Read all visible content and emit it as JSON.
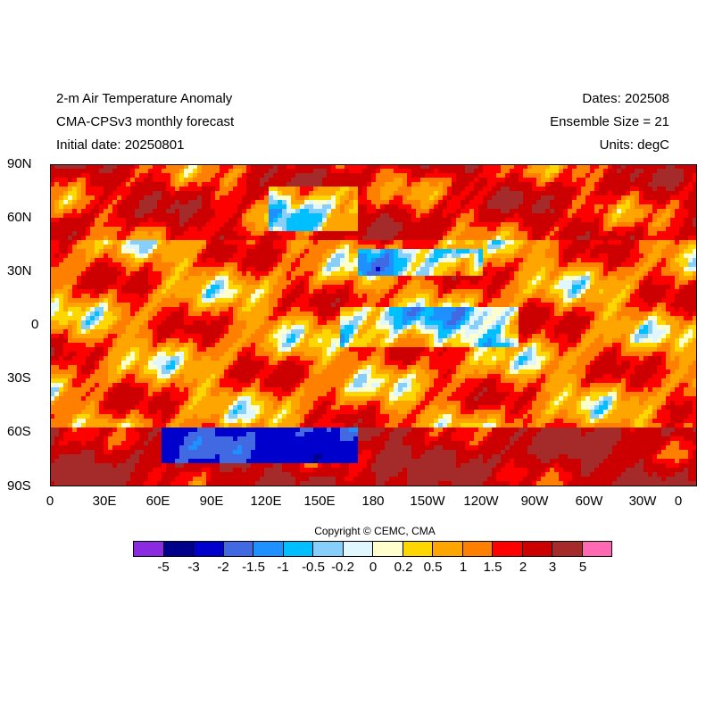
{
  "header": {
    "left": [
      "2-m Air Temperature Anomaly",
      "CMA-CPSv3 monthly forecast",
      "Initial date: 20250801"
    ],
    "right": [
      "Dates: 202508",
      "Ensemble Size = 21",
      "Units: degC"
    ]
  },
  "map": {
    "lat_labels": [
      "90N",
      "60N",
      "30N",
      "0",
      "30S",
      "60S",
      "90S"
    ],
    "lon_labels": [
      "0",
      "30E",
      "60E",
      "90E",
      "120E",
      "150E",
      "180",
      "150W",
      "120W",
      "90W",
      "60W",
      "30W",
      "0"
    ]
  },
  "copyright": "Copyright © CEMC, CMA",
  "colorbar": {
    "colors": [
      "#8a2be2",
      "#00008b",
      "#0000cd",
      "#4169e1",
      "#1e90ff",
      "#00bfff",
      "#87cefa",
      "#e0f7ff",
      "#ffffcc",
      "#ffd700",
      "#ffa500",
      "#ff7f00",
      "#ff0000",
      "#cc0000",
      "#a52a2a",
      "#ff69b4"
    ],
    "labels": [
      "-5",
      "-3",
      "-2",
      "-1.5",
      "-1",
      "-0.5",
      "-0.2",
      "0",
      "0.2",
      "0.5",
      "1",
      "1.5",
      "2",
      "3",
      "5"
    ]
  }
}
